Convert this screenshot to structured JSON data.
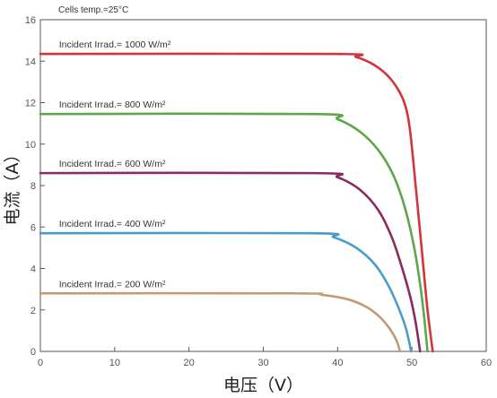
{
  "chart_data": {
    "type": "line",
    "annotation": "Cells temp.=25°C",
    "xlabel": "电压（V）",
    "ylabel": "电流（A）",
    "xlim": [
      0,
      60
    ],
    "ylim": [
      0,
      16
    ],
    "xticks": [
      0,
      10,
      20,
      30,
      40,
      50,
      60
    ],
    "yticks": [
      0,
      2,
      4,
      6,
      8,
      10,
      12,
      14,
      16
    ],
    "grid": false,
    "series": [
      {
        "name": "Incident Irrad.= 1000 W/m²",
        "color": "#d1353b",
        "x": [
          0,
          39.5,
          42.5,
          45,
          47,
          48.5,
          49.3,
          49.8,
          50.5,
          51.3,
          52.1,
          52.8
        ],
        "y": [
          14.35,
          14.35,
          14.2,
          13.8,
          13.2,
          12.4,
          11.6,
          10.5,
          8.0,
          5.0,
          2.0,
          0
        ]
      },
      {
        "name": "Incident Irrad.= 800 W/m²",
        "color": "#5fa54a",
        "x": [
          0,
          37,
          40,
          43,
          45.5,
          47.5,
          49,
          50.2,
          51.0,
          51.6,
          52.1
        ],
        "y": [
          11.45,
          11.45,
          11.2,
          10.6,
          9.7,
          8.5,
          7.0,
          5.2,
          3.5,
          1.8,
          0
        ]
      },
      {
        "name": "Incident Irrad.= 600 W/m²",
        "color": "#8a2a5e",
        "x": [
          0,
          37,
          40,
          43,
          45.5,
          47.3,
          48.7,
          49.8,
          50.5,
          51.1
        ],
        "y": [
          8.6,
          8.6,
          8.4,
          7.8,
          6.8,
          5.5,
          4.0,
          2.6,
          1.4,
          0
        ]
      },
      {
        "name": "Incident Irrad.= 400 W/m²",
        "color": "#4a9cc9",
        "x": [
          0,
          36.5,
          39.5,
          42.5,
          45,
          46.8,
          48.2,
          49.2,
          49.9
        ],
        "y": [
          5.7,
          5.7,
          5.5,
          5.0,
          4.2,
          3.2,
          2.1,
          1.1,
          0
        ]
      },
      {
        "name": "Incident Irrad.= 200 W/m²",
        "color": "#c49a72",
        "x": [
          0,
          34,
          38,
          41.5,
          44,
          45.7,
          47,
          47.9,
          48.4
        ],
        "y": [
          2.8,
          2.8,
          2.72,
          2.5,
          2.12,
          1.65,
          1.1,
          0.55,
          0
        ]
      }
    ]
  }
}
